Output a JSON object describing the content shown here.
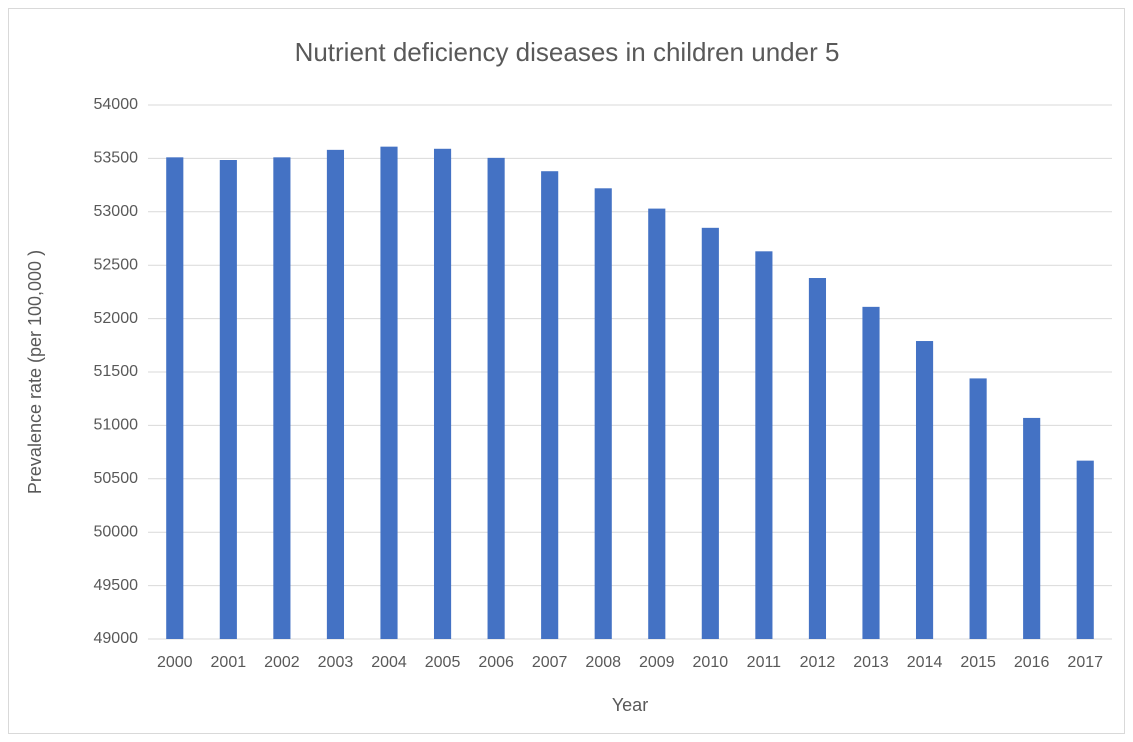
{
  "chart_data": {
    "type": "bar",
    "title": "Nutrient deficiency diseases in children under 5",
    "x_label": "Year",
    "y_label": "Prevalence rate (per 100,000 )",
    "categories": [
      "2000",
      "2001",
      "2002",
      "2003",
      "2004",
      "2005",
      "2006",
      "2007",
      "2008",
      "2009",
      "2010",
      "2011",
      "2012",
      "2013",
      "2014",
      "2015",
      "2016",
      "2017"
    ],
    "values": [
      53510,
      53485,
      53510,
      53580,
      53610,
      53590,
      53505,
      53380,
      53220,
      53030,
      52850,
      52630,
      52380,
      52110,
      51790,
      51440,
      51070,
      50670
    ],
    "color": "#4472c4",
    "ylim": [
      49000,
      54000
    ],
    "yticks": [
      49000,
      49500,
      50000,
      50500,
      51000,
      51500,
      52000,
      52500,
      53000,
      53500,
      54000
    ],
    "grid": true
  }
}
